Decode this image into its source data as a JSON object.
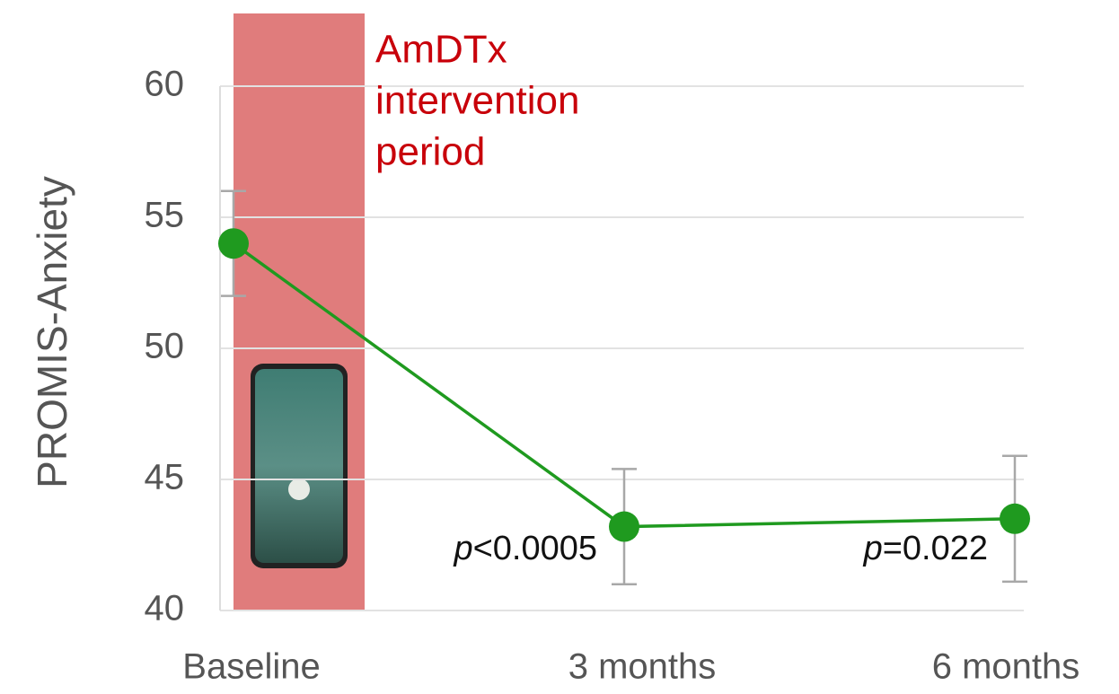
{
  "chart_data": {
    "type": "line",
    "y_label": "PROMIS-Anxiety",
    "categories": [
      "Baseline",
      "3 months",
      "6 months"
    ],
    "series": [
      {
        "name": "PROMIS-Anxiety",
        "color": "#1f9a1f",
        "values": [
          54.0,
          43.2,
          43.5
        ],
        "errors": [
          2.0,
          2.2,
          2.4
        ]
      }
    ],
    "error_color": "#a8a8a8",
    "ylim": [
      40,
      60
    ],
    "yticks": [
      40,
      45,
      50,
      55,
      60
    ],
    "grid": true,
    "intervention_label": [
      "AmDTx",
      "intervention",
      "period"
    ],
    "intervention_color": "#e07c7c",
    "intervention_text_color": "#c8000a",
    "p_values": [
      null,
      {
        "symbol": "p",
        "text": "<0.0005"
      },
      {
        "symbol": "p",
        "text": "=0.022"
      }
    ]
  }
}
